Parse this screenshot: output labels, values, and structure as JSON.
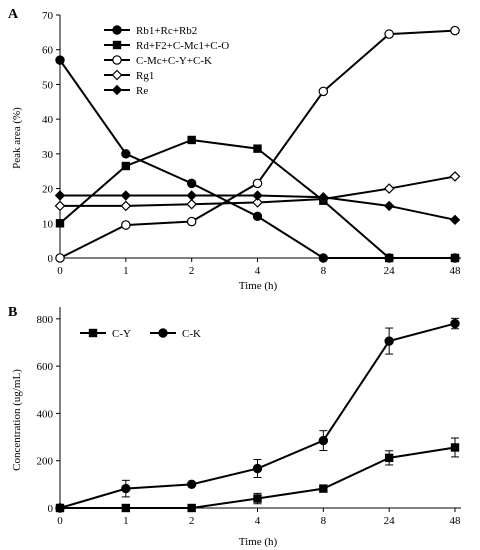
{
  "chart_data": [
    {
      "panel_label": "A",
      "type": "line",
      "xlabel": "Time (h)",
      "ylabel": "Peak area (%)",
      "categories": [
        "0",
        "1",
        "2",
        "4",
        "8",
        "24",
        "48"
      ],
      "ylim": [
        0,
        70
      ],
      "yticks": [
        0,
        10,
        20,
        30,
        40,
        50,
        60,
        70
      ],
      "legend_position": "top-left",
      "series": [
        {
          "name": "Rb1+Rc+Rb2",
          "marker": "filled-circle",
          "values": [
            57,
            30,
            21.5,
            12,
            0,
            0,
            0
          ]
        },
        {
          "name": "Rd+F2+C-Mc1+C-O",
          "marker": "filled-square",
          "values": [
            10,
            26.5,
            34,
            31.5,
            16.5,
            0,
            0
          ]
        },
        {
          "name": "C-Mc+C-Y+C-K",
          "marker": "open-circle",
          "values": [
            0,
            9.5,
            10.5,
            21.5,
            48,
            64.5,
            65.5
          ]
        },
        {
          "name": "Rg1",
          "marker": "open-diamond",
          "values": [
            15,
            15,
            15.5,
            16,
            17,
            20,
            23.5
          ]
        },
        {
          "name": "Re",
          "marker": "filled-diamond",
          "values": [
            18,
            18,
            18,
            18,
            17.5,
            15,
            11
          ]
        }
      ]
    },
    {
      "panel_label": "B",
      "type": "line",
      "xlabel": "Time (h)",
      "ylabel": "Concentration (ug/mL)",
      "categories": [
        "0",
        "1",
        "2",
        "4",
        "8",
        "24",
        "48"
      ],
      "ylim": [
        0,
        850
      ],
      "yticks": [
        0,
        200,
        400,
        600,
        800
      ],
      "legend_position": "top-left",
      "series": [
        {
          "name": "C-Y",
          "marker": "filled-square",
          "values": [
            0,
            0,
            0,
            40,
            82,
            212,
            256
          ],
          "errors": [
            0,
            0,
            0,
            22,
            0,
            30,
            40
          ]
        },
        {
          "name": "C-K",
          "marker": "filled-circle",
          "values": [
            0,
            82,
            100,
            167,
            285,
            706,
            780
          ],
          "errors": [
            0,
            35,
            0,
            38,
            42,
            55,
            22
          ]
        }
      ]
    }
  ]
}
